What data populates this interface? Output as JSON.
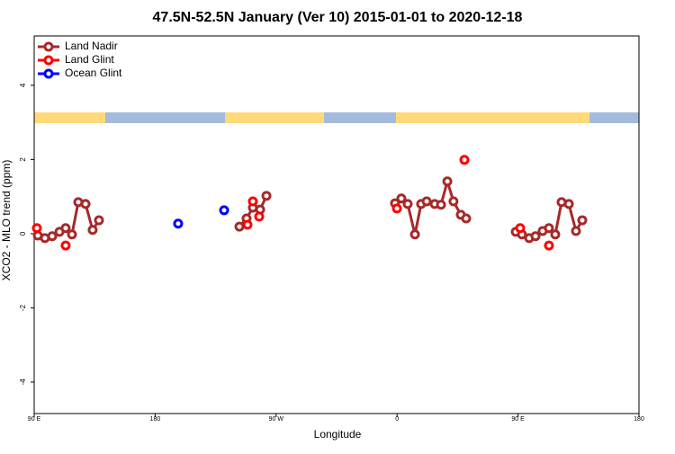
{
  "chart_data": {
    "type": "scatter",
    "title": "47.5N-52.5N January (Ver 10)   2015-01-01 to 2020-12-18",
    "x_label": "Longitude",
    "y_label": "XCO2 - MLO trend (ppm)",
    "xlim": [
      90,
      540
    ],
    "ylim": [
      -4.85,
      5.33
    ],
    "xticks": [
      {
        "value": 90,
        "label": "90 E"
      },
      180,
      {
        "value": 270,
        "label": "90 W"
      },
      {
        "value": 360,
        "label": "0"
      },
      {
        "value": 450,
        "label": "90 E"
      },
      180
    ],
    "yticks": [
      -4,
      -2,
      0,
      2,
      4
    ],
    "legend": "top-left",
    "series": [
      {
        "name": "Land Nadir",
        "color": "#a52a2a",
        "line": true,
        "x": [
          92.7,
          98,
          103.4,
          108.8,
          113.4,
          118.1,
          122.8,
          128.2,
          133.5,
          138.2,
          null,
          242.7,
          248,
          252.7,
          258.1,
          262.8,
          null,
          358.5,
          363.2,
          367.9,
          373.3,
          377.9,
          382,
          388,
          392.7,
          397.4,
          402,
          407.4,
          411.4,
          null,
          448.3,
          452.9,
          458.3,
          463,
          468.3,
          473,
          477.7,
          482.4,
          487.8,
          493.1,
          497.8
        ],
        "values": [
          -0.05,
          -0.12,
          -0.07,
          0.05,
          0.15,
          -0.02,
          0.85,
          0.8,
          0.1,
          0.36,
          null,
          0.19,
          0.41,
          0.7,
          0.65,
          1.02,
          null,
          0.82,
          0.95,
          0.8,
          -0.02,
          0.8,
          0.87,
          0.8,
          0.78,
          1.41,
          0.87,
          0.51,
          0.41,
          null,
          0.05,
          -0.02,
          -0.12,
          -0.07,
          0.07,
          0.15,
          -0.02,
          0.85,
          0.8,
          0.07,
          0.36
        ]
      },
      {
        "name": "Land Glint",
        "color": "#ff0000",
        "line": false,
        "x": [
          92,
          113.4,
          248.7,
          252.7,
          257.4,
          359.9,
          410.1,
          451.6,
          473
        ],
        "values": [
          0.15,
          -0.32,
          0.24,
          0.87,
          0.46,
          0.68,
          1.99,
          0.15,
          -0.32
        ]
      },
      {
        "name": "Ocean Glint",
        "color": "#0000ff",
        "line": false,
        "x": [
          197.1,
          231.3
        ],
        "values": [
          0.27,
          0.63
        ]
      }
    ]
  }
}
